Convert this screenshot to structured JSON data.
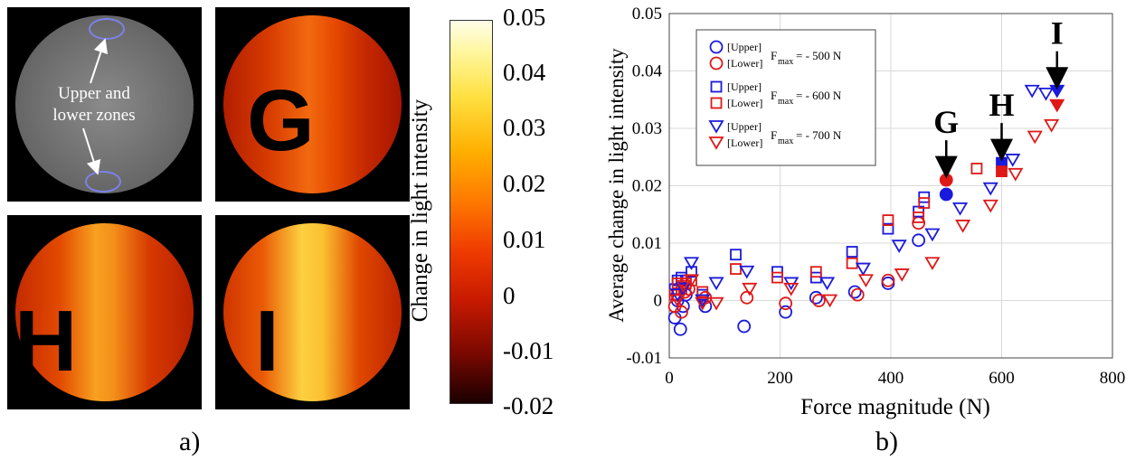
{
  "panel_a": {
    "label": "a)",
    "annotation": "Upper and lower zones",
    "annotation_line1": "Upper and",
    "annotation_line2": "lower zones",
    "letters": {
      "g": "G",
      "h": "H",
      "i": "I"
    },
    "colorbar": {
      "label": "Change in light intensity",
      "ticks": [
        "0.05",
        "0.04",
        "0.03",
        "0.02",
        "0.01",
        "0",
        "-0.01",
        "-0.02"
      ],
      "range": [
        -0.02,
        0.05
      ],
      "colormap": "hot"
    }
  },
  "panel_b": {
    "label": "b)"
  },
  "chart_data": {
    "type": "scatter",
    "xlabel": "Force magnitude (N)",
    "ylabel": "Average change in light intensity",
    "xlim": [
      0,
      800
    ],
    "ylim": [
      -0.01,
      0.05
    ],
    "xticks": [
      0,
      200,
      400,
      600,
      800
    ],
    "yticks": [
      -0.01,
      0,
      0.01,
      0.02,
      0.03,
      0.04,
      0.05
    ],
    "grid": true,
    "legend_position": "top-left",
    "legend_groups": [
      {
        "upper": "[Upper]",
        "lower": "[Lower]",
        "fmax_prefix": "F",
        "fmax_sub": "max",
        "fmax_value": " = - 500 N",
        "marker": "circle"
      },
      {
        "upper": "[Upper]",
        "lower": "[Lower]",
        "fmax_prefix": "F",
        "fmax_sub": "max",
        "fmax_value": " = - 600 N",
        "marker": "square"
      },
      {
        "upper": "[Upper]",
        "lower": "[Lower]",
        "fmax_prefix": "F",
        "fmax_sub": "max",
        "fmax_value": " = - 700 N",
        "marker": "triangle"
      }
    ],
    "colors": {
      "upper": "#1a1adc",
      "lower": "#e01818"
    },
    "series": [
      {
        "zone": "upper",
        "marker": "circle",
        "filled_last": true,
        "points": [
          [
            10,
            -0.003
          ],
          [
            15,
            0
          ],
          [
            20,
            -0.005
          ],
          [
            25,
            -0.001
          ],
          [
            30,
            0.001
          ],
          [
            65,
            -0.001
          ],
          [
            135,
            -0.0045
          ],
          [
            210,
            -0.002
          ],
          [
            265,
            0.0005
          ],
          [
            335,
            0.0015
          ],
          [
            395,
            0.003
          ],
          [
            450,
            0.0105
          ],
          [
            500,
            0.0185
          ]
        ]
      },
      {
        "zone": "lower",
        "marker": "circle",
        "filled_last": true,
        "points": [
          [
            10,
            -0.001
          ],
          [
            15,
            0.001
          ],
          [
            22,
            -0.002
          ],
          [
            28,
            0.0015
          ],
          [
            35,
            0.002
          ],
          [
            65,
            0.0005
          ],
          [
            140,
            0.0005
          ],
          [
            210,
            -0.0005
          ],
          [
            270,
            0
          ],
          [
            340,
            0.001
          ],
          [
            395,
            0.0035
          ],
          [
            450,
            0.0135
          ],
          [
            500,
            0.021
          ]
        ]
      },
      {
        "zone": "upper",
        "marker": "square",
        "filled_last": true,
        "points": [
          [
            10,
            0.002
          ],
          [
            15,
            0.0035
          ],
          [
            22,
            0.004
          ],
          [
            30,
            0.0035
          ],
          [
            40,
            0.005
          ],
          [
            60,
            0.001
          ],
          [
            120,
            0.008
          ],
          [
            195,
            0.005
          ],
          [
            265,
            0.004
          ],
          [
            330,
            0.0085
          ],
          [
            395,
            0.0125
          ],
          [
            450,
            0.0155
          ],
          [
            460,
            0.018
          ],
          [
            600,
            0.024
          ]
        ]
      },
      {
        "zone": "lower",
        "marker": "square",
        "filled_last": true,
        "points": [
          [
            10,
            0.001
          ],
          [
            15,
            0.003
          ],
          [
            22,
            0.002
          ],
          [
            30,
            0.003
          ],
          [
            40,
            0.0035
          ],
          [
            60,
            0.0015
          ],
          [
            120,
            0.0055
          ],
          [
            195,
            0.004
          ],
          [
            265,
            0.005
          ],
          [
            330,
            0.0065
          ],
          [
            395,
            0.014
          ],
          [
            450,
            0.0145
          ],
          [
            460,
            0.017
          ],
          [
            555,
            0.023
          ],
          [
            600,
            0.0225
          ]
        ]
      },
      {
        "zone": "upper",
        "marker": "triangle",
        "filled_last": true,
        "points": [
          [
            15,
            0.001
          ],
          [
            25,
            0.002
          ],
          [
            40,
            0.0065
          ],
          [
            60,
            0
          ],
          [
            85,
            0.003
          ],
          [
            140,
            0.005
          ],
          [
            220,
            0.003
          ],
          [
            285,
            0.003
          ],
          [
            350,
            0.0055
          ],
          [
            415,
            0.0095
          ],
          [
            475,
            0.0115
          ],
          [
            525,
            0.016
          ],
          [
            580,
            0.0195
          ],
          [
            620,
            0.0245
          ],
          [
            655,
            0.0365
          ],
          [
            680,
            0.036
          ],
          [
            700,
            0.0365
          ]
        ]
      },
      {
        "zone": "lower",
        "marker": "triangle",
        "filled_last": true,
        "points": [
          [
            15,
            0
          ],
          [
            25,
            0.0025
          ],
          [
            40,
            0.0035
          ],
          [
            60,
            -0.0005
          ],
          [
            85,
            -0.0005
          ],
          [
            145,
            0.002
          ],
          [
            220,
            0.002
          ],
          [
            290,
            0
          ],
          [
            355,
            0.0035
          ],
          [
            420,
            0.0045
          ],
          [
            475,
            0.0065
          ],
          [
            530,
            0.013
          ],
          [
            580,
            0.0165
          ],
          [
            625,
            0.022
          ],
          [
            660,
            0.0285
          ],
          [
            690,
            0.0305
          ],
          [
            700,
            0.034
          ]
        ]
      }
    ],
    "annotations": [
      {
        "text": "G",
        "x": 500,
        "y": 0.021
      },
      {
        "text": "H",
        "x": 600,
        "y": 0.024
      },
      {
        "text": "I",
        "x": 700,
        "y": 0.0365
      }
    ]
  }
}
